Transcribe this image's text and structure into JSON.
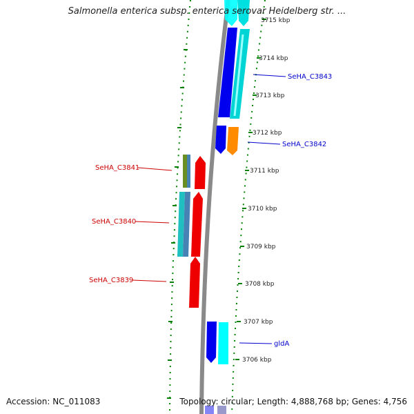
{
  "title": "Salmonella enterica subsp. enterica serovar Heidelberg str. ...",
  "accession_label": "Accession: NC_011083",
  "topology_label": "Topology: circular; Length: 4,888,768 bp; Genes: 4,756",
  "colors": {
    "strand_blue": "#0000ee",
    "strand_cyan": "#00dcdc",
    "orange": "#ff8c00",
    "red": "#ee0000",
    "olive": "#6b8e23",
    "teal": "#20b2aa",
    "steelblue": "#4682b4",
    "backbone": "#808080",
    "tick_green": "#008000",
    "label_blue": "#0000cc",
    "label_red": "#cc0000"
  },
  "scale_labels": [
    "3715 kbp",
    "3714 kbp",
    "3713 kbp",
    "3712 kbp",
    "3711 kbp",
    "3710 kbp",
    "3709 kbp",
    "3708 kbp",
    "3707 kbp",
    "3706 kbp"
  ],
  "gene_labels": [
    {
      "name": "SeHA_C3843",
      "strand": "forward"
    },
    {
      "name": "SeHA_C3842",
      "strand": "forward"
    },
    {
      "name": "SeHA_C3841",
      "strand": "reverse"
    },
    {
      "name": "SeHA_C3840",
      "strand": "reverse"
    },
    {
      "name": "SeHA_C3839",
      "strand": "reverse"
    },
    {
      "name": "gldA",
      "strand": "forward"
    }
  ]
}
